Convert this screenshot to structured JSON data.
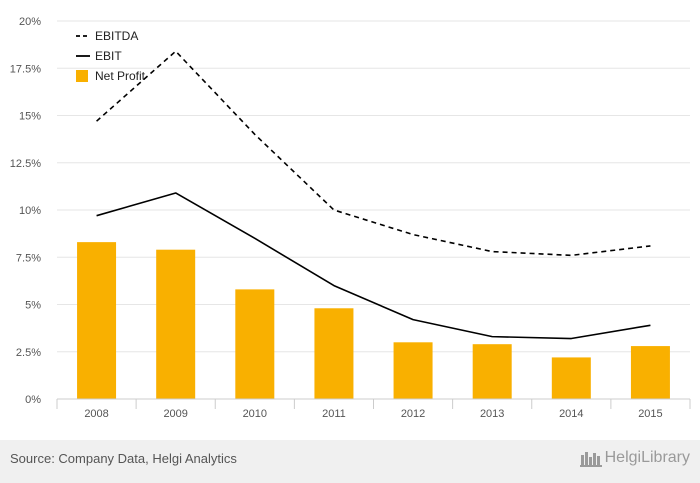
{
  "chart_data": {
    "type": "bar+line",
    "categories": [
      "2008",
      "2009",
      "2010",
      "2011",
      "2012",
      "2013",
      "2014",
      "2015"
    ],
    "ylim": [
      0,
      20
    ],
    "yticks": [
      "0%",
      "2.5%",
      "5%",
      "7.5%",
      "10%",
      "12.5%",
      "15%",
      "17.5%",
      "20%"
    ],
    "grid": true,
    "legend_position": "top-left",
    "series": [
      {
        "name": "EBITDA",
        "kind": "line",
        "style": "dashed",
        "color": "#000000",
        "values": [
          14.7,
          18.4,
          14.0,
          10.0,
          8.7,
          7.8,
          7.6,
          8.1
        ]
      },
      {
        "name": "EBIT",
        "kind": "line",
        "style": "solid",
        "color": "#000000",
        "values": [
          9.7,
          10.9,
          8.5,
          6.0,
          4.2,
          3.3,
          3.2,
          3.9
        ]
      },
      {
        "name": "Net Profit",
        "kind": "bar",
        "color": "#f9b000",
        "values": [
          8.3,
          7.9,
          5.8,
          4.8,
          3.0,
          2.9,
          2.2,
          2.8
        ]
      }
    ]
  },
  "footer": {
    "source": "Source: Company Data, Helgi Analytics",
    "brand": "HelgiLibrary"
  }
}
